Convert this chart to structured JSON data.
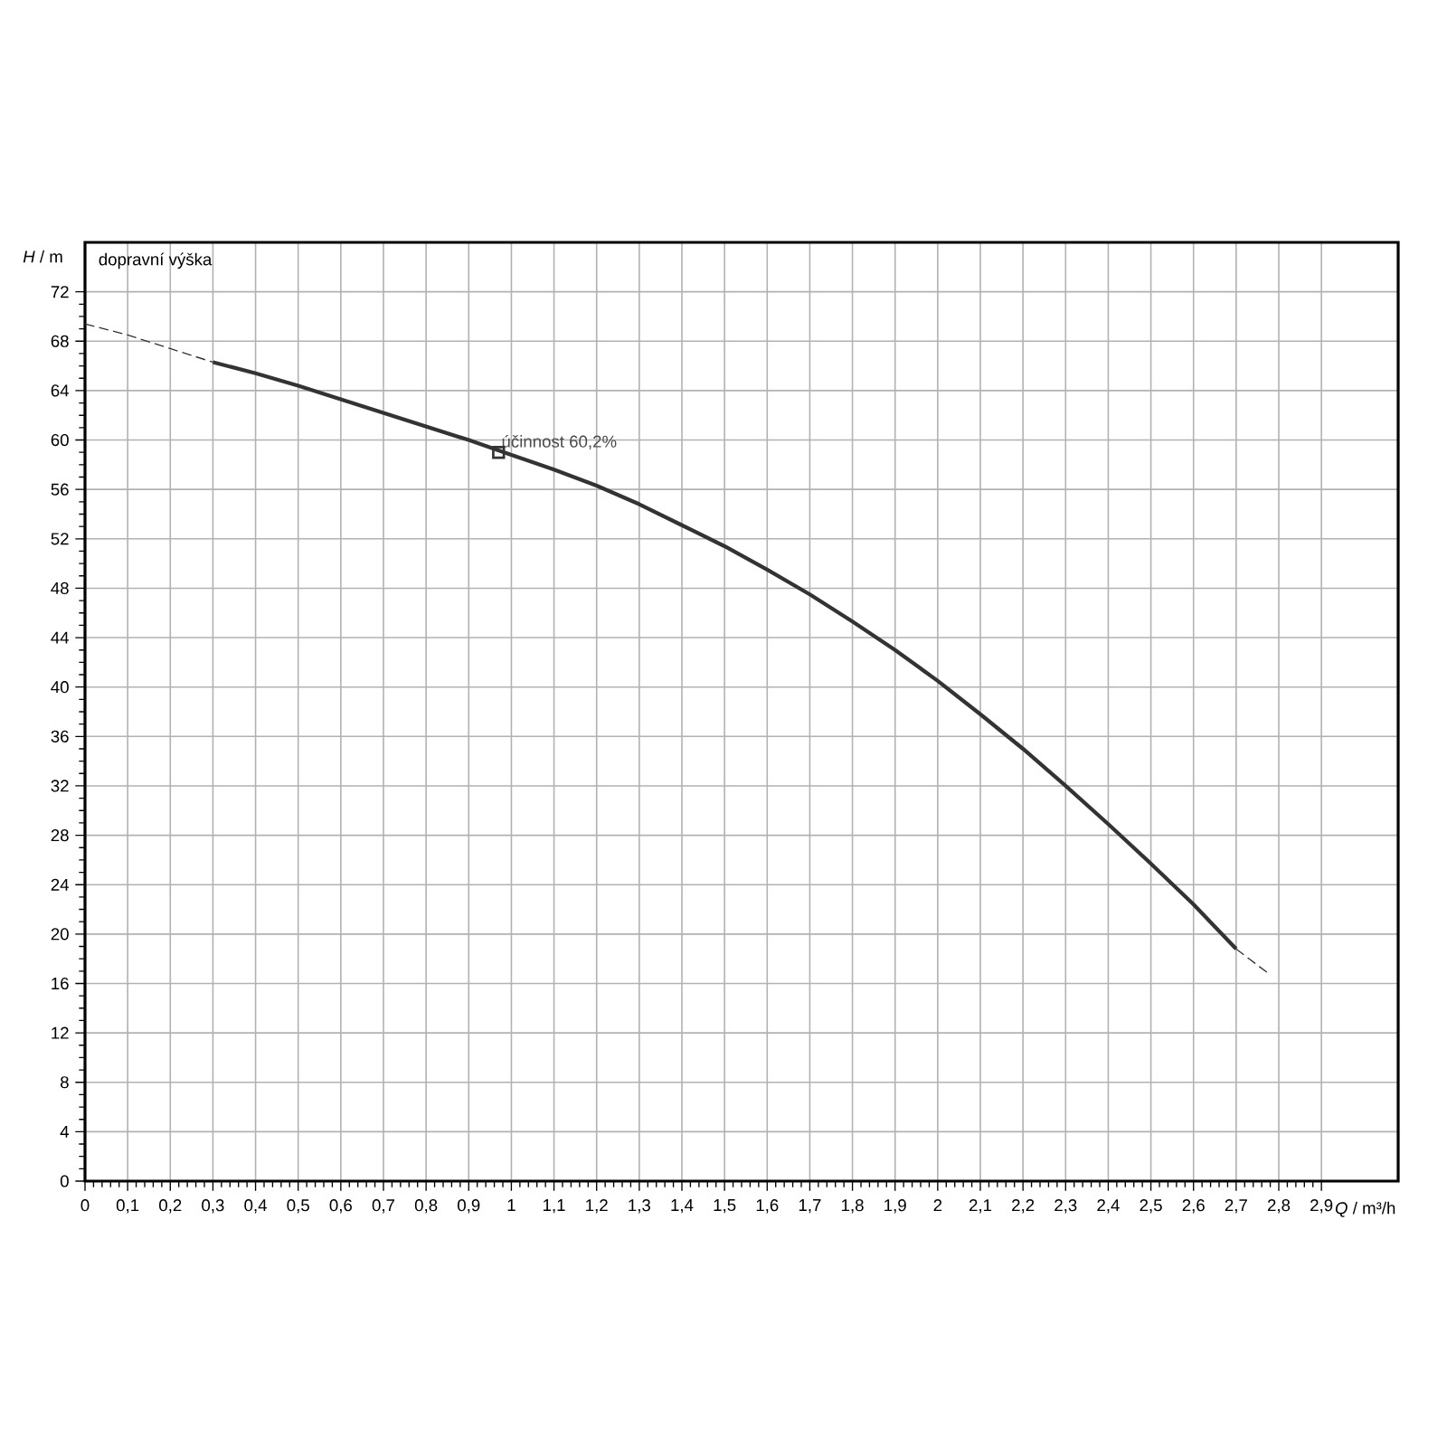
{
  "chart_data": {
    "type": "line",
    "xlabel": "*Q* / m³/h",
    "ylabel": "*H* / m",
    "annotations": [
      "dopravní výška",
      {
        "text": "účinnost 60,2%",
        "x": 0.97,
        "y": 59
      }
    ],
    "xlim": [
      0,
      3.08
    ],
    "ylim": [
      0,
      76
    ],
    "xticks": [
      0,
      {
        "value": 0.1,
        "label": "0,1"
      },
      {
        "value": 0.2,
        "label": "0,2"
      },
      {
        "value": 0.3,
        "label": "0,3"
      },
      {
        "value": 0.4,
        "label": "0,4"
      },
      {
        "value": 0.5,
        "label": "0,5"
      },
      {
        "value": 0.6,
        "label": "0,6"
      },
      {
        "value": 0.7,
        "label": "0,7"
      },
      {
        "value": 0.8,
        "label": "0,8"
      },
      {
        "value": 0.9,
        "label": "0,9"
      },
      1,
      {
        "value": 1.1,
        "label": "1,1"
      },
      {
        "value": 1.2,
        "label": "1,2"
      },
      {
        "value": 1.3,
        "label": "1,3"
      },
      {
        "value": 1.4,
        "label": "1,4"
      },
      {
        "value": 1.5,
        "label": "1,5"
      },
      {
        "value": 1.6,
        "label": "1,6"
      },
      {
        "value": 1.7,
        "label": "1,7"
      },
      {
        "value": 1.8,
        "label": "1,8"
      },
      {
        "value": 1.9,
        "label": "1,9"
      },
      2,
      {
        "value": 2.1,
        "label": "2,1"
      },
      {
        "value": 2.2,
        "label": "2,2"
      },
      {
        "value": 2.3,
        "label": "2,3"
      },
      {
        "value": 2.4,
        "label": "2,4"
      },
      {
        "value": 2.5,
        "label": "2,5"
      },
      {
        "value": 2.6,
        "label": "2,6"
      },
      {
        "value": 2.7,
        "label": "2,7"
      },
      {
        "value": 2.8,
        "label": "2,8"
      },
      {
        "value": 2.9,
        "label": "2,9"
      }
    ],
    "yticks": [
      0,
      4,
      8,
      12,
      16,
      20,
      24,
      28,
      32,
      36,
      40,
      44,
      48,
      52,
      56,
      60,
      64,
      68,
      72
    ],
    "grid": true,
    "series": [
      {
        "color": "#333333",
        "line_style": "dashed",
        "x": [
          0,
          0.1,
          0.2,
          0.3
        ],
        "values": [
          69.4,
          68.5,
          67.4,
          66.3
        ]
      },
      {
        "color": "#333333",
        "line_style": "solid",
        "x": [
          0.3,
          0.4,
          0.5,
          0.6,
          0.7,
          0.8,
          0.9,
          1.0,
          1.1,
          1.2,
          1.3,
          1.4,
          1.5,
          1.6,
          1.7,
          1.8,
          1.9,
          2.0,
          2.1,
          2.2,
          2.3,
          2.4,
          2.5,
          2.6,
          2.7
        ],
        "values": [
          66.3,
          65.4,
          64.4,
          63.3,
          62.2,
          61.1,
          60.0,
          58.8,
          57.6,
          56.3,
          54.8,
          53.1,
          51.4,
          49.5,
          47.5,
          45.3,
          43.0,
          40.5,
          37.8,
          35.0,
          32.0,
          28.9,
          25.7,
          22.4,
          18.8
        ]
      },
      {
        "color": "#333333",
        "line_style": "dashed",
        "x": [
          2.7,
          2.78
        ],
        "values": [
          18.8,
          16.7
        ]
      },
      {
        "type": "scatter",
        "color": "#333333",
        "marker": "square",
        "x": [
          0.97
        ],
        "values": [
          59.0
        ]
      }
    ]
  }
}
